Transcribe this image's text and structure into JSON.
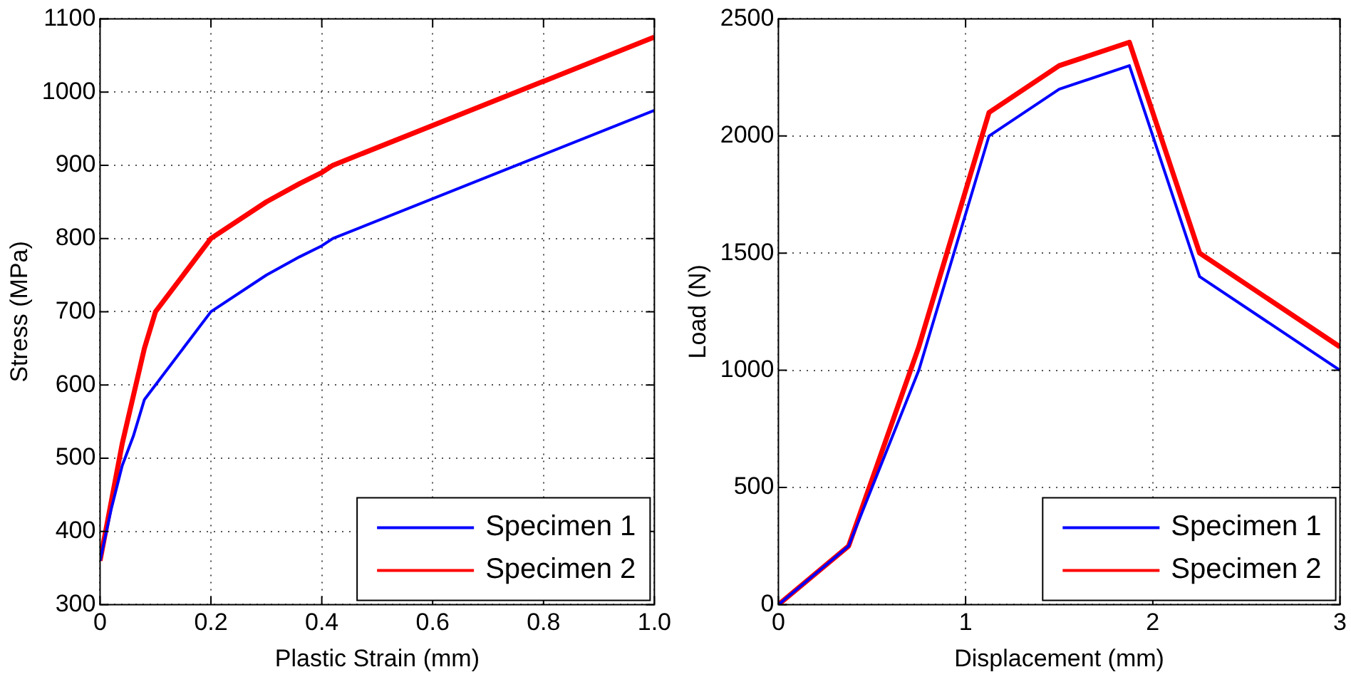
{
  "chart_data": [
    {
      "type": "line",
      "xlabel": "Plastic Strain (mm)",
      "ylabel": "Stress (MPa)",
      "xlim": [
        0,
        1
      ],
      "ylim": [
        300,
        1100
      ],
      "xticks": [
        0,
        0.2,
        0.4,
        0.6,
        0.8,
        {
          "value": 1,
          "label": "1.0"
        }
      ],
      "yticks": [
        300,
        400,
        500,
        600,
        700,
        800,
        900,
        1000,
        1100
      ],
      "grid": true,
      "legend": "bottom right",
      "series": [
        {
          "name": "Specimen 1",
          "color": "#0000ff",
          "x": [
            0,
            0.02,
            0.04,
            0.06,
            0.08,
            0.2,
            0.3,
            0.36,
            0.4,
            0.42,
            1
          ],
          "values": [
            360,
            430,
            490,
            530,
            580,
            700,
            750,
            775,
            790,
            800,
            975
          ]
        },
        {
          "name": "Specimen 2",
          "color": "#ff0000",
          "x": [
            0,
            0.04,
            0.08,
            0.1,
            0.2,
            0.3,
            0.36,
            0.4,
            0.42,
            1
          ],
          "values": [
            360,
            520,
            650,
            700,
            800,
            850,
            875,
            890,
            900,
            1075
          ]
        }
      ]
    },
    {
      "type": "line",
      "xlabel": "Displacement (mm)",
      "ylabel": "Load (N)",
      "xlim": [
        0,
        3
      ],
      "ylim": [
        0,
        2500
      ],
      "xticks": [
        0,
        1,
        2,
        3
      ],
      "yticks": [
        0,
        500,
        1000,
        1500,
        2000,
        2500
      ],
      "grid": true,
      "legend": "bottom right",
      "series": [
        {
          "name": "Specimen 1",
          "color": "#0000ff",
          "x": [
            0,
            0.375,
            0.75,
            1.125,
            1.5,
            1.875,
            2.25,
            3
          ],
          "values": [
            0,
            250,
            1000,
            2000,
            2200,
            2300,
            1400,
            1000
          ]
        },
        {
          "name": "Specimen 2",
          "color": "#ff0000",
          "x": [
            0,
            0.375,
            0.75,
            1.125,
            1.5,
            1.875,
            2.25,
            3
          ],
          "values": [
            0,
            250,
            1100,
            2100,
            2300,
            2400,
            1500,
            1100
          ]
        }
      ]
    }
  ]
}
